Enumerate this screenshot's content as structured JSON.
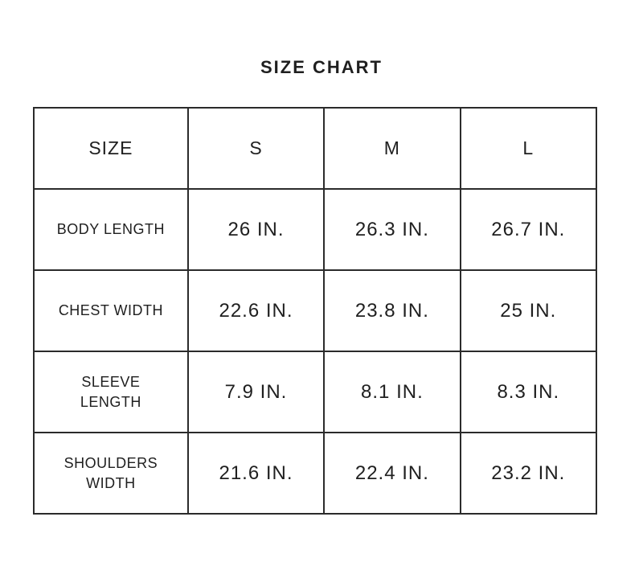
{
  "title": "SIZE CHART",
  "table": {
    "header": [
      "SIZE",
      "S",
      "M",
      "L"
    ],
    "rows": [
      {
        "label": "BODY LENGTH",
        "values": [
          "26 IN.",
          "26.3 IN.",
          "26.7 IN."
        ]
      },
      {
        "label": "CHEST WIDTH",
        "values": [
          "22.6 IN.",
          "23.8 IN.",
          "25 IN."
        ]
      },
      {
        "label": "SLEEVE LENGTH",
        "values": [
          "7.9 IN.",
          "8.1 IN.",
          "8.3 IN."
        ]
      },
      {
        "label": "SHOULDERS WIDTH",
        "values": [
          "21.6 IN.",
          "22.4 IN.",
          "23.2 IN."
        ]
      }
    ]
  },
  "chart_data": {
    "type": "table",
    "title": "SIZE CHART",
    "columns": [
      "SIZE",
      "S",
      "M",
      "L"
    ],
    "rows": [
      [
        "BODY LENGTH",
        "26 IN.",
        "26.3 IN.",
        "26.7 IN."
      ],
      [
        "CHEST WIDTH",
        "22.6 IN.",
        "23.8 IN.",
        "25 IN."
      ],
      [
        "SLEEVE LENGTH",
        "7.9 IN.",
        "8.1 IN.",
        "8.3 IN."
      ],
      [
        "SHOULDERS WIDTH",
        "21.6 IN.",
        "22.4 IN.",
        "23.2 IN."
      ]
    ],
    "numeric_values_inches": {
      "BODY LENGTH": [
        26,
        26.3,
        26.7
      ],
      "CHEST WIDTH": [
        22.6,
        23.8,
        25
      ],
      "SLEEVE LENGTH": [
        7.9,
        8.1,
        8.3
      ],
      "SHOULDERS WIDTH": [
        21.6,
        22.4,
        23.2
      ]
    },
    "units": "IN."
  },
  "colors": {
    "background": "#ffffff",
    "border": "#2b2b2b",
    "text": "#1f1f1f"
  }
}
